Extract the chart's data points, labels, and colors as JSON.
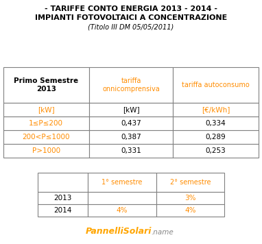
{
  "title_line1": "- TARIFFE CONTO ENERGIA 2013 - 2014 -",
  "title_line2": "IMPIANTI FOTOVOLTAICI A CONCENTRAZIONE",
  "title_line3": "(Titolo III DM 05/05/2011)",
  "bg_color": "#ffffff",
  "table1_header": [
    "Primo Semestre\n2013",
    "tariffa\nonnicomprensiva",
    "tariffa autoconsumo"
  ],
  "table1_units": [
    "[kW]",
    "[kW]",
    "[€/kWh]"
  ],
  "table1_rows": [
    [
      "1≤P≤200",
      "0,437",
      "0,334"
    ],
    [
      "200<P≤1000",
      "0,387",
      "0,289"
    ],
    [
      "P>1000",
      "0,331",
      "0,253"
    ]
  ],
  "table2_header": [
    "",
    "1° semestre",
    "2° semestre"
  ],
  "table2_rows": [
    [
      "2013",
      "",
      "3%"
    ],
    [
      "2014",
      "4%",
      "4%"
    ]
  ],
  "orange_color": "#FF8C00",
  "black_color": "#000000",
  "border_color": "#808080",
  "watermark_orange": "#FFA500",
  "watermark_gray": "#888888"
}
